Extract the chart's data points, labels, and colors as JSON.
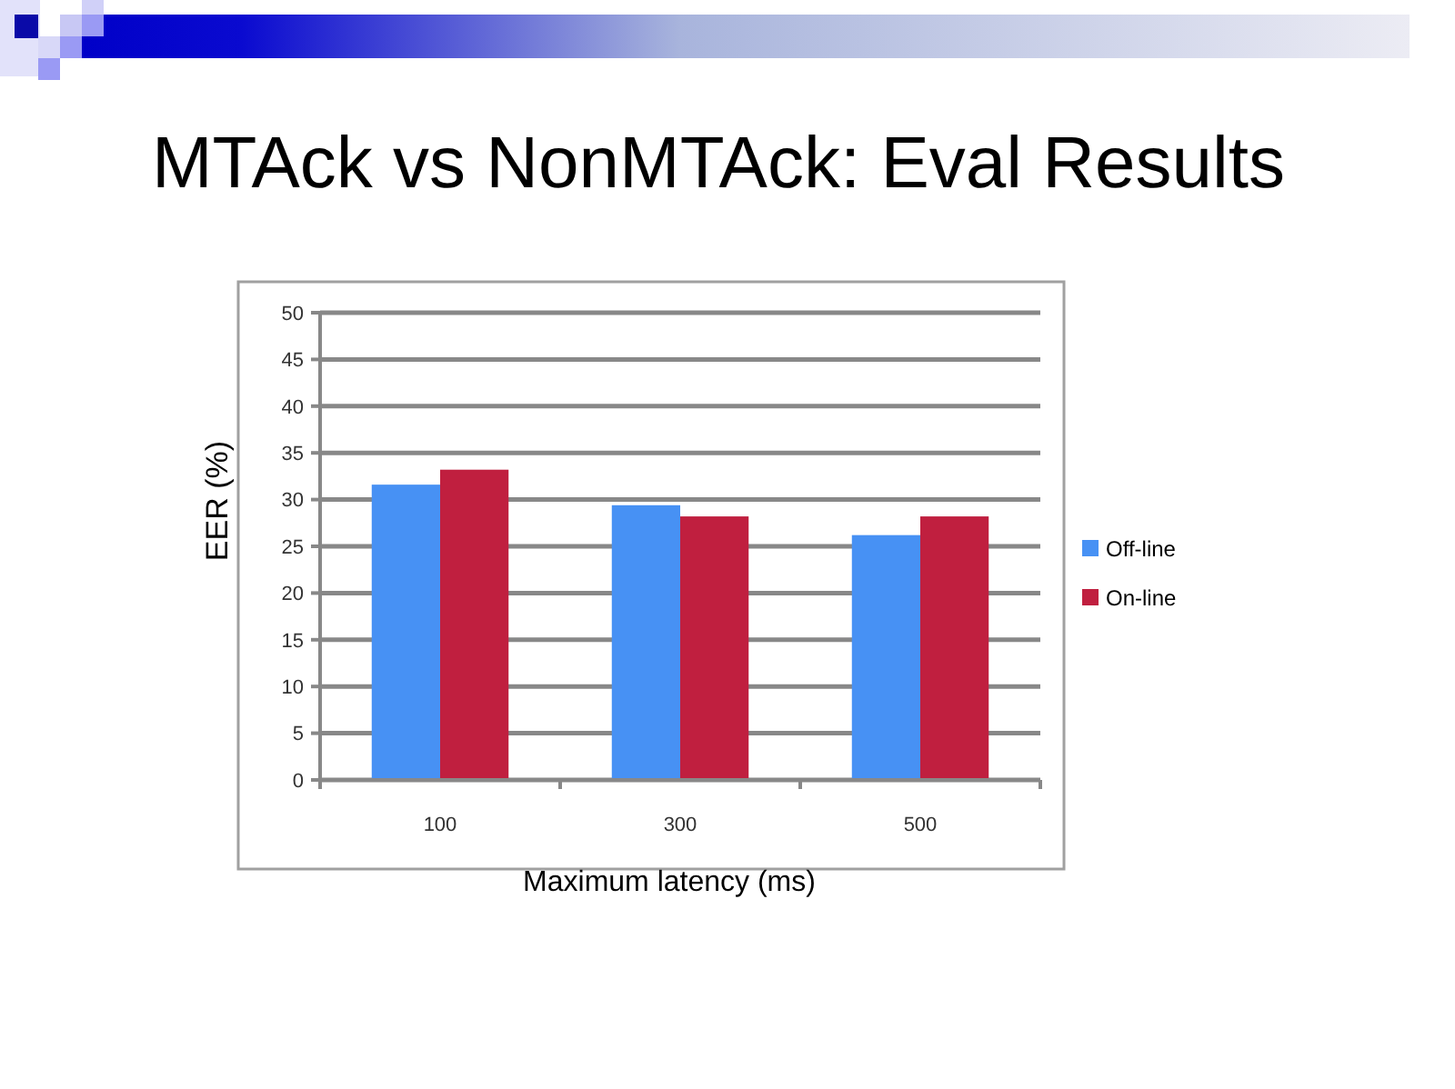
{
  "chart_data": {
    "type": "bar",
    "title": "MTAck vs NonMTAck: Eval Results",
    "xlabel": "Maximum latency (ms)",
    "ylabel": "EER (%)",
    "categories": [
      "100",
      "300",
      "500"
    ],
    "series": [
      {
        "name": "Off-line",
        "color": "#4791f4",
        "values": [
          31.6,
          29.4,
          26.2
        ]
      },
      {
        "name": "On-line",
        "color": "#c01f3f",
        "values": [
          33.2,
          28.2,
          28.2
        ]
      }
    ],
    "ylim": [
      0,
      50
    ],
    "yticks": [
      0,
      5,
      10,
      15,
      20,
      25,
      30,
      35,
      40,
      45,
      50
    ],
    "grid": "y",
    "legend": "right"
  }
}
